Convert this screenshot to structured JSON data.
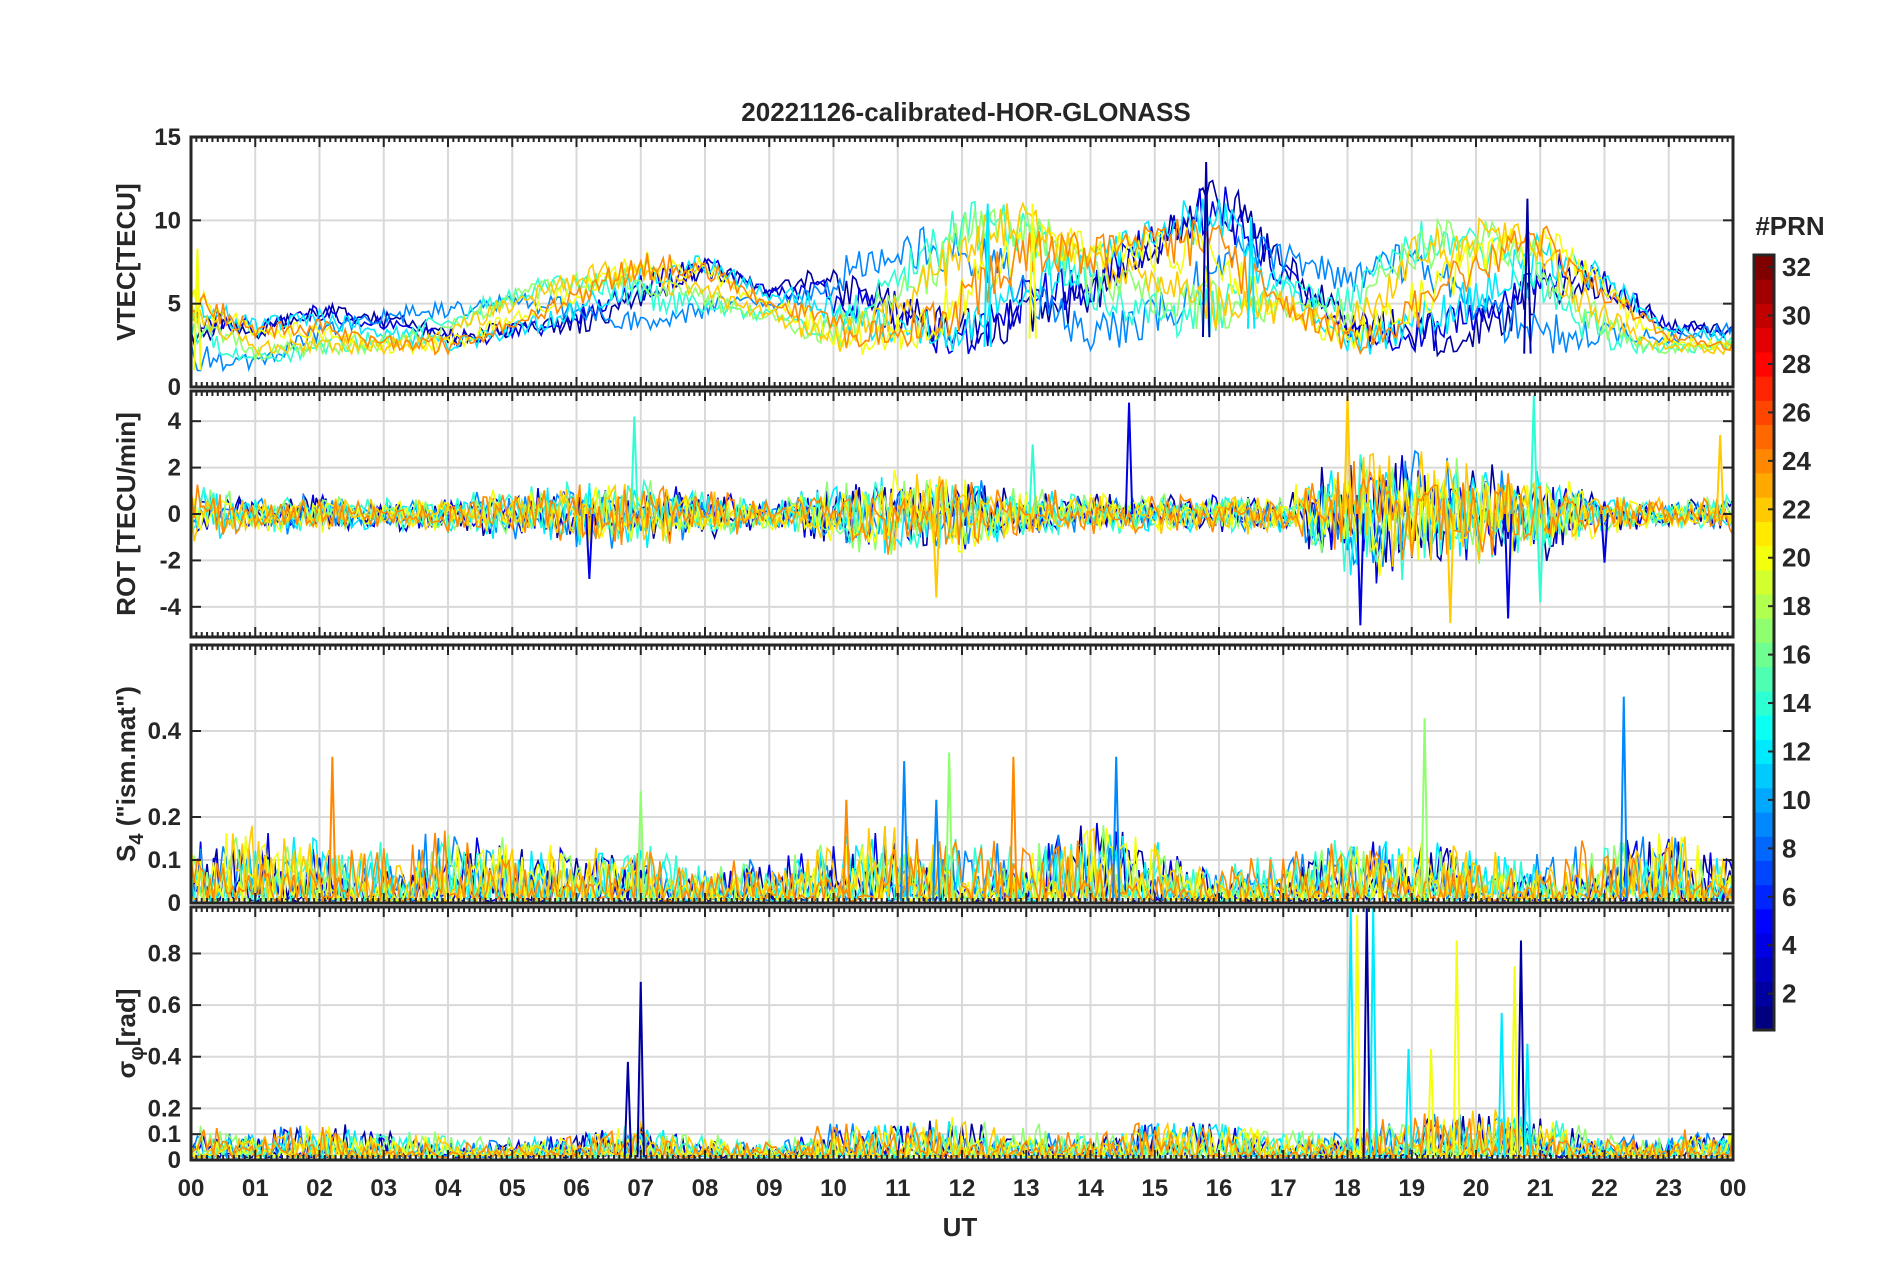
{
  "title": "20221126-calibrated-HOR-GLONASS",
  "xlabel": "UT",
  "x_ticks": [
    "00",
    "01",
    "02",
    "03",
    "04",
    "05",
    "06",
    "07",
    "08",
    "09",
    "10",
    "11",
    "12",
    "13",
    "14",
    "15",
    "16",
    "17",
    "18",
    "19",
    "20",
    "21",
    "22",
    "23",
    "00"
  ],
  "colorbar": {
    "label": "#PRN",
    "range": [
      1,
      32
    ],
    "ticks": [
      "2",
      "4",
      "6",
      "8",
      "10",
      "12",
      "14",
      "16",
      "18",
      "20",
      "22",
      "24",
      "26",
      "28",
      "30",
      "32"
    ],
    "colormap": "jet"
  },
  "chart_data": [
    {
      "type": "line",
      "ylabel": "VTEC[TECU]",
      "xlim": [
        0,
        24
      ],
      "ylim": [
        0,
        15
      ],
      "yticks": [
        "0",
        "5",
        "10",
        "15"
      ],
      "grid": true,
      "envelope_hours": [
        0,
        1,
        2,
        3,
        4,
        5,
        6,
        7,
        8,
        9,
        10,
        11,
        12,
        13,
        14,
        15,
        16,
        17,
        18,
        19,
        20,
        21,
        22,
        23,
        24
      ],
      "envelope_high": [
        6,
        4,
        5,
        5,
        5,
        6,
        7,
        8,
        8,
        6,
        8,
        9,
        11,
        11,
        9,
        10,
        13,
        9,
        7,
        10,
        10,
        10,
        7,
        4,
        4
      ],
      "envelope_low": [
        1,
        1,
        2,
        2,
        2,
        3,
        3,
        3,
        4,
        4,
        2,
        2,
        2,
        3,
        2,
        3,
        3,
        4,
        2,
        2,
        2,
        2,
        2,
        2,
        2
      ],
      "spikes": [
        [
          15.8,
          13.5
        ],
        [
          12.4,
          11
        ],
        [
          13.1,
          11
        ],
        [
          20.8,
          11.3
        ],
        [
          16.5,
          10.2
        ],
        [
          0.1,
          8.3
        ]
      ]
    },
    {
      "type": "line",
      "ylabel": "ROT [TECU/min]",
      "xlim": [
        0,
        24
      ],
      "ylim": [
        -5.3,
        5.3
      ],
      "yticks": [
        "-4",
        "-2",
        "0",
        "2",
        "4"
      ],
      "grid": true,
      "envelope_hours": [
        0,
        1,
        2,
        3,
        4,
        5,
        6,
        7,
        8,
        9,
        10,
        11,
        12,
        13,
        14,
        15,
        16,
        17,
        18,
        19,
        20,
        21,
        22,
        23,
        24
      ],
      "envelope_high": [
        1.5,
        0.8,
        1,
        0.7,
        1,
        1.2,
        1.5,
        1.8,
        1.2,
        0.8,
        1.5,
        2,
        1.8,
        1.2,
        1,
        1,
        1,
        0.9,
        3,
        3,
        2.5,
        2.2,
        1,
        0.7,
        1
      ],
      "envelope_low": [
        -1.5,
        -0.8,
        -1,
        -0.7,
        -1,
        -1.2,
        -1.5,
        -1.8,
        -1.2,
        -0.8,
        -1.5,
        -2,
        -1.8,
        -1.2,
        -1,
        -1,
        -1,
        -0.9,
        -3,
        -3,
        -2.5,
        -2.2,
        -1,
        -0.7,
        -1
      ],
      "spikes": [
        [
          14.6,
          4.8
        ],
        [
          6.9,
          4.2
        ],
        [
          18.0,
          5.2
        ],
        [
          18.2,
          -4.8
        ],
        [
          20.9,
          5.1
        ],
        [
          19.6,
          -4.7
        ],
        [
          20.5,
          -4.5
        ],
        [
          21.0,
          -3.8
        ],
        [
          11.6,
          -3.6
        ],
        [
          6.2,
          -2.8
        ],
        [
          13.1,
          3.0
        ],
        [
          23.8,
          3.4
        ],
        [
          22.0,
          -2.1
        ]
      ]
    },
    {
      "type": "line",
      "ylabel_main": "S",
      "ylabel_sub": "4",
      "ylabel_rest": " (\"ism.mat\")",
      "xlim": [
        0,
        24
      ],
      "ylim": [
        0,
        0.6
      ],
      "yticks": [
        "0",
        "0.1",
        "0.2",
        "0.4"
      ],
      "grid": true,
      "envelope_hours": [
        0,
        1,
        2,
        3,
        4,
        5,
        6,
        7,
        8,
        9,
        10,
        11,
        12,
        13,
        14,
        15,
        16,
        17,
        18,
        19,
        20,
        21,
        22,
        23,
        24
      ],
      "envelope_high": [
        0.15,
        0.2,
        0.15,
        0.15,
        0.2,
        0.15,
        0.13,
        0.15,
        0.12,
        0.1,
        0.15,
        0.2,
        0.15,
        0.15,
        0.2,
        0.15,
        0.1,
        0.12,
        0.18,
        0.15,
        0.13,
        0.15,
        0.15,
        0.2,
        0.1
      ],
      "envelope_low": [
        0.005,
        0.005,
        0.005,
        0.005,
        0.005,
        0.005,
        0.005,
        0.005,
        0.005,
        0.005,
        0.005,
        0.005,
        0.005,
        0.005,
        0.005,
        0.005,
        0.005,
        0.005,
        0.005,
        0.005,
        0.005,
        0.005,
        0.005,
        0.005,
        0.005
      ],
      "spikes": [
        [
          22.3,
          0.48
        ],
        [
          19.2,
          0.43
        ],
        [
          2.2,
          0.34
        ],
        [
          11.1,
          0.33
        ],
        [
          11.8,
          0.35
        ],
        [
          12.8,
          0.34
        ],
        [
          14.4,
          0.34
        ],
        [
          7.0,
          0.26
        ],
        [
          10.2,
          0.24
        ],
        [
          11.6,
          0.24
        ]
      ]
    },
    {
      "type": "line",
      "ylabel_main": "σ",
      "ylabel_sub": "φ",
      "ylabel_rest": "[rad]",
      "xlim": [
        0,
        24
      ],
      "ylim": [
        0,
        0.98
      ],
      "yticks": [
        "0",
        "0.1",
        "0.2",
        "0.4",
        "0.6",
        "0.8"
      ],
      "grid": true,
      "envelope_hours": [
        0,
        1,
        2,
        3,
        4,
        5,
        6,
        7,
        8,
        9,
        10,
        11,
        12,
        13,
        14,
        15,
        16,
        17,
        18,
        19,
        20,
        21,
        22,
        23,
        24
      ],
      "envelope_high": [
        0.15,
        0.12,
        0.15,
        0.12,
        0.12,
        0.1,
        0.1,
        0.15,
        0.1,
        0.1,
        0.15,
        0.15,
        0.18,
        0.15,
        0.13,
        0.15,
        0.15,
        0.12,
        0.15,
        0.18,
        0.2,
        0.2,
        0.12,
        0.12,
        0.12
      ],
      "envelope_low": [
        0.01,
        0.01,
        0.01,
        0.01,
        0.01,
        0.01,
        0.01,
        0.01,
        0.01,
        0.01,
        0.01,
        0.01,
        0.01,
        0.01,
        0.01,
        0.01,
        0.01,
        0.01,
        0.01,
        0.01,
        0.01,
        0.01,
        0.01,
        0.01,
        0.01
      ],
      "spikes": [
        [
          18.05,
          0.98
        ],
        [
          18.15,
          0.95
        ],
        [
          18.3,
          0.98
        ],
        [
          18.4,
          0.98
        ],
        [
          19.7,
          0.85
        ],
        [
          20.7,
          0.85
        ],
        [
          20.4,
          0.57
        ],
        [
          20.6,
          0.75
        ],
        [
          7.0,
          0.69
        ],
        [
          18.95,
          0.43
        ],
        [
          19.3,
          0.43
        ],
        [
          6.8,
          0.38
        ],
        [
          20.8,
          0.45
        ]
      ]
    }
  ]
}
